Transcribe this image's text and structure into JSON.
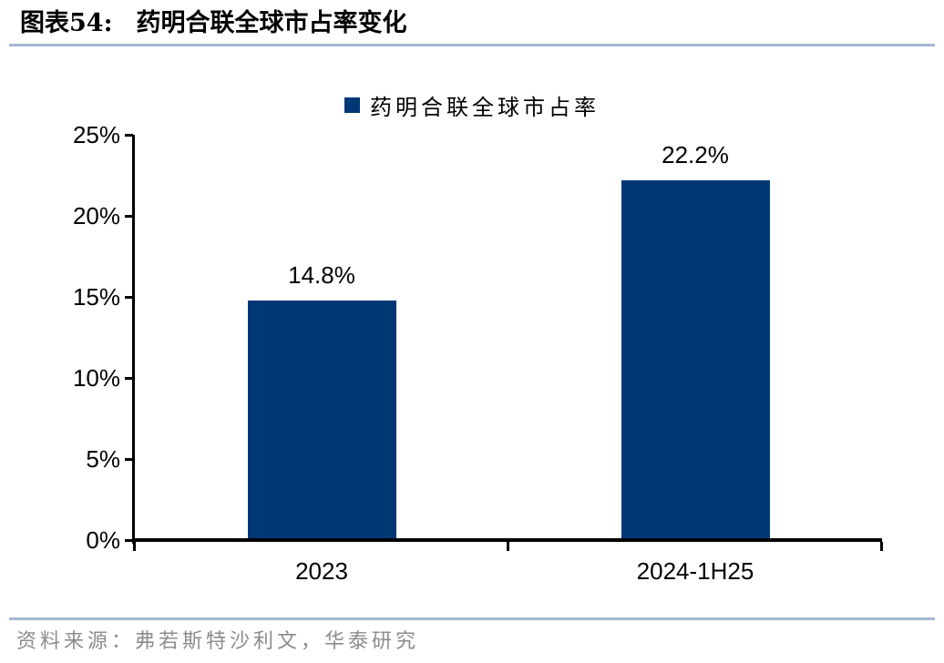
{
  "header": {
    "figure_label": "图表54:",
    "figure_title": "药明合联全球市占率变化"
  },
  "legend": {
    "items": [
      {
        "label": "药明合联全球市占率",
        "color": "#003876"
      }
    ]
  },
  "chart_data": {
    "type": "bar",
    "title": "药明合联全球市占率变化",
    "categories": [
      "2023",
      "2024-1H25"
    ],
    "series": [
      {
        "name": "药明合联全球市占率",
        "color": "#003876",
        "values": [
          14.8,
          22.2
        ]
      }
    ],
    "value_labels": [
      "14.8%",
      "22.2%"
    ],
    "xlabel": "",
    "ylabel": "",
    "ylim": [
      0,
      25
    ],
    "ytick_values": [
      0,
      5,
      10,
      15,
      20,
      25
    ],
    "ytick_labels": [
      "0%",
      "5%",
      "10%",
      "15%",
      "20%",
      "25%"
    ],
    "grid": false,
    "legend_position": "top-center"
  },
  "footer": {
    "source": "资料来源：弗若斯特沙利文，华泰研究"
  },
  "colors": {
    "bar": "#003876",
    "divider": "#a3b7cf",
    "axis": "#000000",
    "source_text": "#8c8c8c"
  }
}
